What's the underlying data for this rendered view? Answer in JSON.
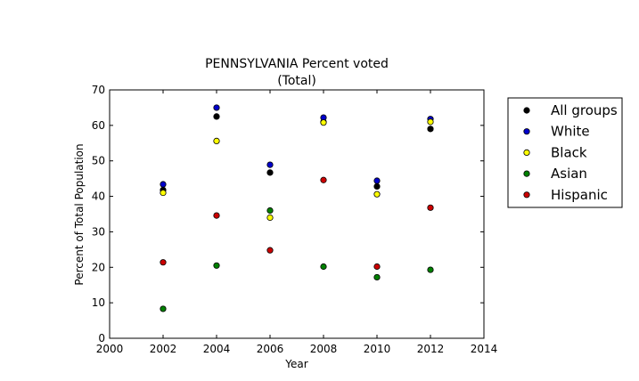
{
  "chart_data": {
    "type": "scatter",
    "title": "PENNSYLVANIA Percent voted",
    "subtitle": "(Total)",
    "xlabel": "Year",
    "ylabel": "Percent of Total Population",
    "xlim": [
      2000,
      2014
    ],
    "ylim": [
      0,
      70
    ],
    "x_ticks": [
      "2000",
      "2002",
      "2004",
      "2006",
      "2008",
      "2010",
      "2012",
      "2014"
    ],
    "y_ticks": [
      "0",
      "10",
      "20",
      "30",
      "40",
      "50",
      "60",
      "70"
    ],
    "grid": false,
    "legend_position": "outside-right",
    "x": [
      2002,
      2004,
      2006,
      2008,
      2010,
      2012
    ],
    "series": [
      {
        "name": "All groups",
        "color": "#000000",
        "values": [
          41.8,
          62.5,
          46.7,
          61.0,
          42.8,
          59.0
        ]
      },
      {
        "name": "White",
        "color": "#0000cc",
        "values": [
          43.4,
          65.0,
          48.9,
          62.2,
          44.4,
          61.8
        ]
      },
      {
        "name": "Black",
        "color": "#ffff00",
        "values": [
          41.0,
          55.6,
          34.0,
          60.8,
          40.6,
          61.0
        ]
      },
      {
        "name": "Asian",
        "color": "#008000",
        "values": [
          8.3,
          20.5,
          36.0,
          20.2,
          17.2,
          19.3
        ]
      },
      {
        "name": "Hispanic",
        "color": "#cc0000",
        "values": [
          21.4,
          34.6,
          24.8,
          44.6,
          20.2,
          36.8
        ]
      }
    ]
  }
}
